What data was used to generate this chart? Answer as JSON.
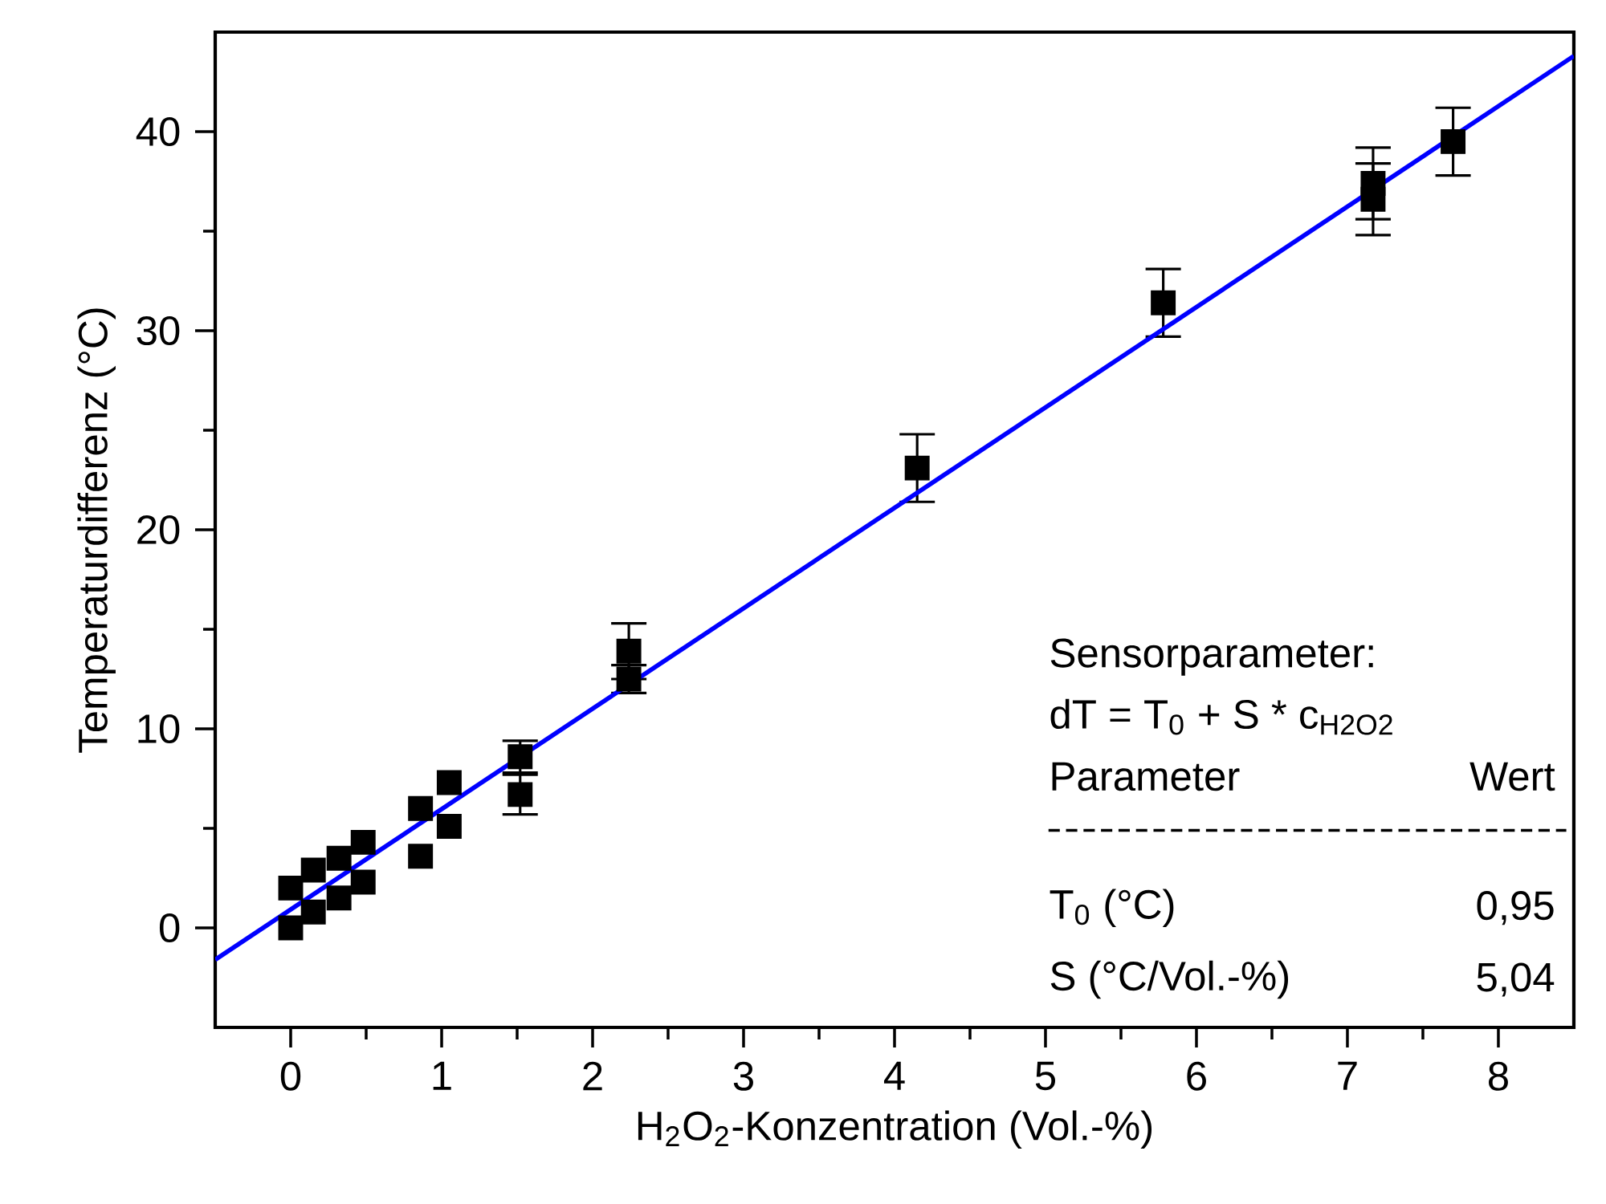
{
  "chart_data": {
    "type": "scatter",
    "xlabel": "H$_{2}$O$_{2}$-Konzentration (Vol.-%)",
    "ylabel": "Temperaturdifferenz (°C)",
    "xlim": [
      -0.5,
      8.5
    ],
    "ylim": [
      -5,
      45
    ],
    "xticks": [
      0,
      1,
      2,
      3,
      4,
      5,
      6,
      7,
      8
    ],
    "yticks": [
      0,
      10,
      20,
      30,
      40
    ],
    "grid": false,
    "marker": "square",
    "series": [
      {
        "color": "#000000",
        "x": [
          0,
          0,
          0.15,
          0.15,
          0.32,
          0.32,
          0.48,
          0.48,
          0.86,
          0.86,
          1.05,
          1.05,
          1.52,
          1.52,
          2.24,
          2.24,
          4.15,
          5.78,
          7.17,
          7.17,
          7.7
        ],
        "values": [
          0,
          2.0,
          0.8,
          2.9,
          1.5,
          3.5,
          2.3,
          4.3,
          3.6,
          6.0,
          5.1,
          7.3,
          6.7,
          8.6,
          12.5,
          13.9,
          23.1,
          31.4,
          36.6,
          37.4,
          39.5
        ],
        "errors": [
          null,
          null,
          null,
          null,
          null,
          null,
          null,
          null,
          null,
          null,
          null,
          null,
          1.0,
          0.8,
          0.7,
          1.4,
          1.7,
          1.7,
          1.8,
          1.8,
          1.7
        ]
      },
      {
        "type": "line",
        "color": "#0000ff",
        "marker": "none",
        "x": [
          -0.5,
          8.5
        ],
        "values": [
          -1.6,
          43.8
        ]
      }
    ],
    "annotations": [
      "Sensorparameter:",
      "dT = T$_{0}$ + S * c$_{H2O2}$",
      "Parameter",
      "Wert",
      "T$_{0}$ (°C)",
      "0,95",
      "S (°C/Vol.-%)",
      "5,04"
    ]
  }
}
